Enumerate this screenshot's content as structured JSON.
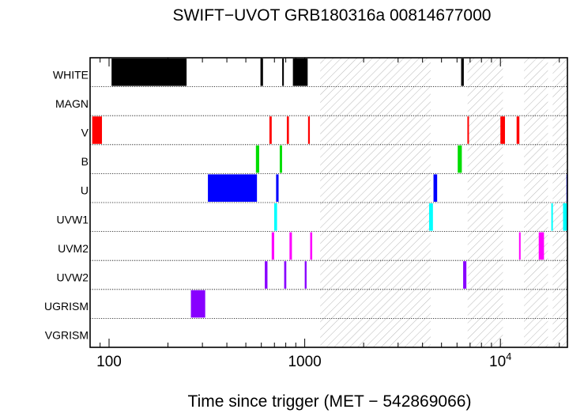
{
  "chart_data": {
    "type": "timeline",
    "title": "SWIFT−UVOT GRB180316a 00814677000",
    "xlabel": "Time since trigger (MET − 542869066)",
    "x_scale": "log",
    "xlim": [
      80,
      22000
    ],
    "x_ticks": [
      {
        "value": 100,
        "label": "100"
      },
      {
        "value": 1000,
        "label": "1000"
      },
      {
        "value": 10000,
        "label": "10",
        "sup": "4"
      }
    ],
    "rows": [
      "WHITE",
      "MAGN",
      "V",
      "B",
      "U",
      "UVW1",
      "UVM2",
      "UVW2",
      "UGRISM",
      "VGRISM"
    ],
    "gaps": [
      [
        1200,
        4400
      ],
      [
        6800,
        10300
      ],
      [
        13200,
        17500
      ],
      [
        18500,
        22000
      ]
    ],
    "row_colors": {
      "WHITE": "#000000",
      "V": "#ff0000",
      "B": "#00dd00",
      "U": "#0000ff",
      "UVW1": "#00ffff",
      "UVM2": "#ff00ff",
      "UVW2": "#8800ff",
      "UGRISM": "#8800ff"
    },
    "exposures": [
      {
        "filter": "WHITE",
        "start": 103,
        "end": 249
      },
      {
        "filter": "WHITE",
        "start": 594,
        "end": 612
      },
      {
        "filter": "WHITE",
        "start": 767,
        "end": 782
      },
      {
        "filter": "WHITE",
        "start": 870,
        "end": 1035
      },
      {
        "filter": "WHITE",
        "start": 6300,
        "end": 6500
      },
      {
        "filter": "V",
        "start": 82,
        "end": 92
      },
      {
        "filter": "V",
        "start": 660,
        "end": 678
      },
      {
        "filter": "V",
        "start": 810,
        "end": 830
      },
      {
        "filter": "V",
        "start": 1040,
        "end": 1062
      },
      {
        "filter": "V",
        "start": 6780,
        "end": 6840
      },
      {
        "filter": "V",
        "start": 10000,
        "end": 10550
      },
      {
        "filter": "V",
        "start": 12100,
        "end": 12500
      },
      {
        "filter": "B",
        "start": 563,
        "end": 585
      },
      {
        "filter": "B",
        "start": 745,
        "end": 766
      },
      {
        "filter": "B",
        "start": 6050,
        "end": 6350
      },
      {
        "filter": "U",
        "start": 320,
        "end": 570
      },
      {
        "filter": "U",
        "start": 714,
        "end": 735
      },
      {
        "filter": "U",
        "start": 4550,
        "end": 4750
      },
      {
        "filter": "U",
        "start": 21750,
        "end": 22000
      },
      {
        "filter": "UVW1",
        "start": 698,
        "end": 722
      },
      {
        "filter": "UVW1",
        "start": 4320,
        "end": 4520
      },
      {
        "filter": "UVW1",
        "start": 18200,
        "end": 18380
      },
      {
        "filter": "UVW1",
        "start": 20900,
        "end": 22000
      },
      {
        "filter": "UVM2",
        "start": 678,
        "end": 698
      },
      {
        "filter": "UVM2",
        "start": 836,
        "end": 860
      },
      {
        "filter": "UVM2",
        "start": 1066,
        "end": 1092
      },
      {
        "filter": "UVM2",
        "start": 12450,
        "end": 12650
      },
      {
        "filter": "UVM2",
        "start": 15700,
        "end": 16700
      },
      {
        "filter": "UVW2",
        "start": 625,
        "end": 645
      },
      {
        "filter": "UVW2",
        "start": 785,
        "end": 805
      },
      {
        "filter": "UVW2",
        "start": 1000,
        "end": 1022
      },
      {
        "filter": "UVW2",
        "start": 6450,
        "end": 6700
      },
      {
        "filter": "UGRISM",
        "start": 262,
        "end": 310
      }
    ]
  }
}
